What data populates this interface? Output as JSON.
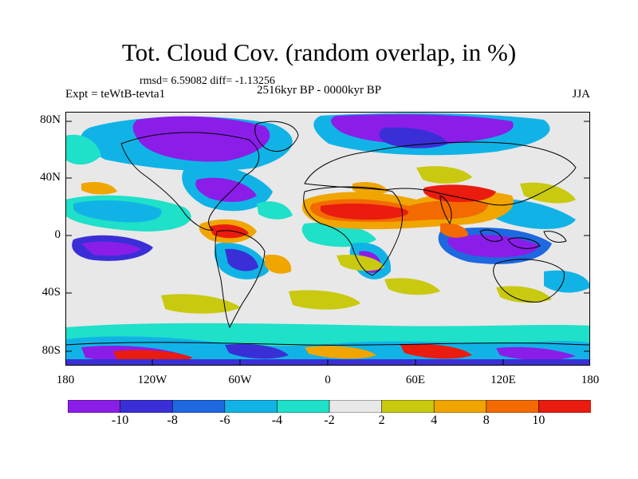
{
  "title": "Tot. Cloud Cov. (random overlap, in %)",
  "stats": "rmsd= 6.59082 diff= -1.13256",
  "period": "2516kyr BP - 0000kyr BP",
  "experiment": "Expt = teWtB-tevta1",
  "season": "JJA",
  "map": {
    "lat_labels": [
      "80N",
      "40N",
      "0",
      "40S",
      "80S"
    ],
    "lon_labels": [
      "180",
      "120W",
      "60W",
      "0",
      "60E",
      "120E",
      "180"
    ],
    "land_outline_color": "#000000"
  },
  "colorbar": {
    "labels": [
      "-10",
      "-8",
      "-6",
      "-4",
      "-2",
      "2",
      "4",
      "8",
      "10"
    ],
    "colors": [
      "#8a1ee8",
      "#3a2fd6",
      "#1e68e0",
      "#11b3e6",
      "#1fe0c8",
      "#e8e8e8",
      "#c9c90f",
      "#f0a500",
      "#f26a00",
      "#ea1b0f"
    ]
  },
  "palette": {
    "violet": "#8a1ee8",
    "blue": "#3a2fd6",
    "mid_blue": "#1e68e0",
    "cyan": "#11b3e6",
    "teal": "#1fe0c8",
    "neutral": "#e8e8e8",
    "olive": "#c9c90f",
    "orange": "#f0a500",
    "dark_orange": "#f26a00",
    "red": "#ea1b0f"
  }
}
